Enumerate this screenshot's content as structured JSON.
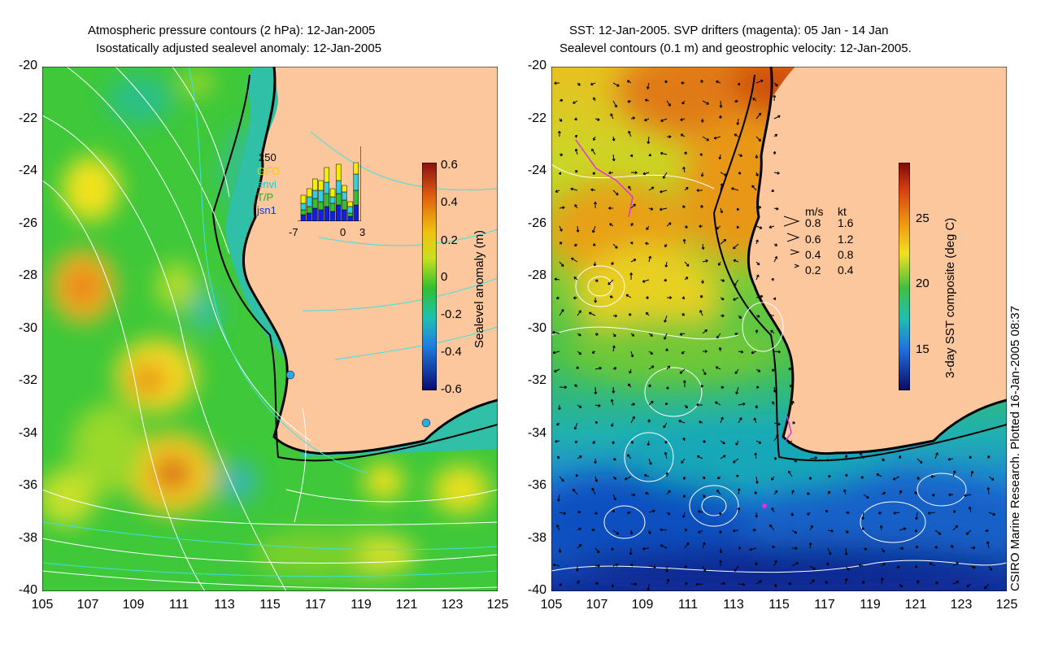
{
  "left_panel": {
    "title_line1": "Atmospheric pressure contours (2 hPa): 12-Jan-2005",
    "title_line2": "Isostatically adjusted sealevel anomaly: 12-Jan-2005",
    "colorbar": {
      "label": "Sealevel anomaly (m)",
      "ticks": [
        "0.6",
        "0.4",
        "0.2",
        "0",
        "-0.2",
        "-0.4",
        "-0.6"
      ],
      "range": [
        -0.6,
        0.6
      ]
    },
    "inset": {
      "ymax_label": "250",
      "legend": [
        "GFO",
        "envi",
        "T/P",
        "jsn1"
      ],
      "legend_colors": [
        "#f0f000",
        "#30d0e0",
        "#30c030",
        "#1020e0"
      ],
      "xticks": [
        "-7",
        "0",
        "3"
      ]
    }
  },
  "right_panel": {
    "title_line1": "SST: 12-Jan-2005. SVP drifters (magenta): 05 Jan - 14 Jan",
    "title_line2": "Sealevel contours (0.1 m) and geostrophic velocity: 12-Jan-2005.",
    "colorbar": {
      "label": "3-day SST composite (deg C)",
      "ticks": [
        "25",
        "20",
        "15"
      ],
      "range": [
        12,
        29
      ]
    },
    "velocity_legend": {
      "header_ms": "m/s",
      "header_kt": "kt",
      "rows": [
        {
          "ms": "0.8",
          "kt": "1.6"
        },
        {
          "ms": "0.6",
          "kt": "1.2"
        },
        {
          "ms": "0.4",
          "kt": "0.8"
        },
        {
          "ms": "0.2",
          "kt": "0.4"
        }
      ]
    }
  },
  "axes": {
    "lat_ticks": [
      "-20",
      "-22",
      "-24",
      "-26",
      "-28",
      "-30",
      "-32",
      "-34",
      "-36",
      "-38",
      "-40"
    ],
    "lon_ticks": [
      "105",
      "107",
      "109",
      "111",
      "113",
      "115",
      "117",
      "119",
      "121",
      "123",
      "125"
    ],
    "lat_range": [
      -40,
      -20
    ],
    "lon_range": [
      105,
      125
    ]
  },
  "credit": "CSIRO Marine Research. Plotted 16-Jan-2005 08:37",
  "colors": {
    "land": "#fcc79c",
    "ocean_green": "#3ec83a",
    "coast": "#000000"
  }
}
